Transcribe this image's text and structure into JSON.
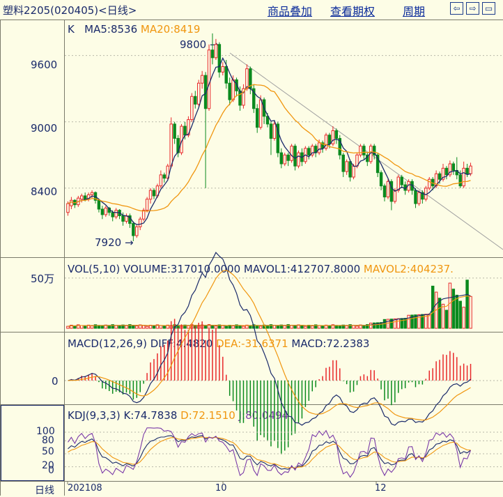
{
  "header": {
    "title": "塑料2205(020405)<日线>",
    "links": [
      "商品叠加",
      "查看期权",
      "周期"
    ],
    "nav_icons": [
      "prev-icon",
      "next-icon",
      "expand-icon"
    ]
  },
  "main_panel": {
    "label_k": "K",
    "ma5": "MA5:8536",
    "ma20": "MA20:8419",
    "y_ticks": [
      "9600",
      "9000",
      "8400"
    ],
    "high_label": "9800",
    "low_label": "7920"
  },
  "vol_panel": {
    "label": "VOL(5,10)",
    "volume": "VOLUME:317010.0000",
    "mavol1": "MAVOL1:412707.8000",
    "mavol2": "MAVOL2:404237.",
    "y_tick": "50万"
  },
  "macd_panel": {
    "label": "MACD(12,26,9)",
    "diff": "DIFF:4.4820",
    "dea": "DEA:-31.6371",
    "macd": "MACD:72.2383",
    "y_tick": "0"
  },
  "kdj_panel": {
    "label": "KDJ(9,3,3)",
    "k": "K:74.7838",
    "d": "D:72.1510",
    "j": "J:80.0494",
    "y_ticks": [
      "100",
      "80",
      "50",
      "20",
      "0"
    ]
  },
  "x_axis": {
    "period_label": "日线",
    "ticks": [
      "202108",
      "10",
      "12"
    ]
  },
  "colors": {
    "up": "#e8282a",
    "down": "#0a8a1e",
    "ma5": "#1a2a6a",
    "ma20": "#f0960f",
    "grid": "#b8b8a8"
  },
  "chart_data": {
    "type": "candlestick",
    "y_range": [
      7800,
      9850
    ],
    "candles": [
      [
        8180,
        8260,
        8150,
        8280
      ],
      [
        8240,
        8290,
        8210,
        8320
      ],
      [
        8290,
        8250,
        8220,
        8300
      ],
      [
        8250,
        8310,
        8230,
        8330
      ],
      [
        8300,
        8330,
        8270,
        8350
      ],
      [
        8330,
        8300,
        8280,
        8360
      ],
      [
        8300,
        8340,
        8280,
        8360
      ],
      [
        8340,
        8360,
        8310,
        8380
      ],
      [
        8360,
        8290,
        8260,
        8370
      ],
      [
        8290,
        8210,
        8180,
        8300
      ],
      [
        8210,
        8160,
        8120,
        8240
      ],
      [
        8160,
        8220,
        8140,
        8240
      ],
      [
        8220,
        8180,
        8150,
        8230
      ],
      [
        8180,
        8140,
        8100,
        8200
      ],
      [
        8140,
        8200,
        8120,
        8220
      ],
      [
        8200,
        8150,
        8120,
        8210
      ],
      [
        8150,
        8100,
        8060,
        8180
      ],
      [
        8100,
        8150,
        8080,
        8170
      ],
      [
        8150,
        8080,
        8040,
        8170
      ],
      [
        8080,
        7970,
        7920,
        8100
      ],
      [
        7970,
        8050,
        7950,
        8070
      ],
      [
        8050,
        8120,
        8020,
        8140
      ],
      [
        8120,
        8200,
        8100,
        8220
      ],
      [
        8200,
        8300,
        8180,
        8320
      ],
      [
        8300,
        8380,
        8260,
        8400
      ],
      [
        8380,
        8330,
        8300,
        8400
      ],
      [
        8330,
        8420,
        8310,
        8440
      ],
      [
        8420,
        8520,
        8400,
        8560
      ],
      [
        8520,
        8490,
        8450,
        8540
      ],
      [
        8490,
        8600,
        8470,
        8620
      ],
      [
        8600,
        8980,
        8580,
        9040
      ],
      [
        8980,
        8850,
        8800,
        9000
      ],
      [
        8850,
        8720,
        8680,
        8880
      ],
      [
        8720,
        8960,
        8700,
        8980
      ],
      [
        8960,
        8880,
        8840,
        9000
      ],
      [
        8880,
        9020,
        8860,
        9050
      ],
      [
        9020,
        9230,
        9000,
        9260
      ],
      [
        9230,
        9160,
        9120,
        9280
      ],
      [
        9160,
        9350,
        9140,
        9380
      ],
      [
        9350,
        9420,
        9300,
        9460
      ],
      [
        9420,
        9120,
        8400,
        9450
      ],
      [
        9120,
        9650,
        9100,
        9700
      ],
      [
        9650,
        9580,
        9520,
        9800
      ],
      [
        9580,
        9700,
        9560,
        9750
      ],
      [
        9700,
        9450,
        9400,
        9720
      ],
      [
        9450,
        9500,
        9420,
        9540
      ],
      [
        9500,
        9350,
        9300,
        9560
      ],
      [
        9350,
        9200,
        9150,
        9400
      ],
      [
        9200,
        9380,
        9180,
        9420
      ],
      [
        9380,
        9280,
        9230,
        9400
      ],
      [
        9280,
        9150,
        9100,
        9320
      ],
      [
        9150,
        9300,
        9120,
        9340
      ],
      [
        9300,
        9480,
        9280,
        9520
      ],
      [
        9480,
        9300,
        9250,
        9500
      ],
      [
        9300,
        9120,
        9080,
        9340
      ],
      [
        9120,
        8950,
        8900,
        9160
      ],
      [
        8950,
        9200,
        8930,
        9240
      ],
      [
        9200,
        9050,
        8980,
        9220
      ],
      [
        9050,
        8980,
        8950,
        9080
      ],
      [
        8980,
        8850,
        8700,
        9000
      ],
      [
        8850,
        8980,
        8830,
        9010
      ],
      [
        8980,
        8720,
        8680,
        9000
      ],
      [
        8720,
        8620,
        8580,
        8760
      ],
      [
        8620,
        8700,
        8600,
        8720
      ],
      [
        8700,
        8650,
        8600,
        8720
      ],
      [
        8650,
        8780,
        8630,
        8800
      ],
      [
        8780,
        8600,
        8560,
        8800
      ],
      [
        8600,
        8720,
        8580,
        8740
      ],
      [
        8720,
        8640,
        8600,
        8760
      ],
      [
        8640,
        8760,
        8620,
        8780
      ],
      [
        8760,
        8700,
        8660,
        8780
      ],
      [
        8700,
        8780,
        8680,
        8800
      ],
      [
        8780,
        8720,
        8680,
        8800
      ],
      [
        8720,
        8810,
        8700,
        8840
      ],
      [
        8810,
        8760,
        8720,
        8830
      ],
      [
        8760,
        8880,
        8740,
        8900
      ],
      [
        8880,
        8800,
        8760,
        8900
      ],
      [
        8800,
        8920,
        8780,
        8960
      ],
      [
        8920,
        8850,
        8800,
        8940
      ],
      [
        8850,
        8700,
        8660,
        8880
      ],
      [
        8700,
        8550,
        8500,
        8720
      ],
      [
        8550,
        8640,
        8520,
        8660
      ],
      [
        8640,
        8500,
        8460,
        8660
      ],
      [
        8500,
        8600,
        8480,
        8620
      ],
      [
        8600,
        8700,
        8580,
        8720
      ],
      [
        8700,
        8780,
        8680,
        8800
      ],
      [
        8780,
        8700,
        8660,
        8800
      ],
      [
        8700,
        8640,
        8600,
        8720
      ],
      [
        8640,
        8780,
        8620,
        8800
      ],
      [
        8780,
        8700,
        8660,
        8800
      ],
      [
        8700,
        8540,
        8500,
        8720
      ],
      [
        8540,
        8420,
        8380,
        8560
      ],
      [
        8420,
        8320,
        8280,
        8440
      ],
      [
        8320,
        8460,
        8300,
        8480
      ],
      [
        8460,
        8280,
        8200,
        8480
      ],
      [
        8280,
        8380,
        8260,
        8400
      ],
      [
        8380,
        8500,
        8360,
        8520
      ],
      [
        8500,
        8430,
        8400,
        8520
      ],
      [
        8430,
        8380,
        8340,
        8460
      ],
      [
        8380,
        8460,
        8360,
        8480
      ],
      [
        8460,
        8380,
        8340,
        8480
      ],
      [
        8380,
        8260,
        8220,
        8400
      ],
      [
        8260,
        8360,
        8240,
        8380
      ],
      [
        8360,
        8300,
        8260,
        8380
      ],
      [
        8300,
        8400,
        8280,
        8420
      ],
      [
        8400,
        8480,
        8380,
        8500
      ],
      [
        8480,
        8420,
        8380,
        8500
      ],
      [
        8420,
        8530,
        8400,
        8560
      ],
      [
        8530,
        8480,
        8440,
        8550
      ],
      [
        8480,
        8580,
        8460,
        8620
      ],
      [
        8580,
        8520,
        8480,
        8600
      ],
      [
        8520,
        8620,
        8500,
        8650
      ],
      [
        8620,
        8560,
        8520,
        8640
      ],
      [
        8560,
        8520,
        8480,
        8680
      ],
      [
        8520,
        8420,
        8400,
        8560
      ],
      [
        8420,
        8580,
        8400,
        8640
      ],
      [
        8580,
        8530,
        8500,
        8620
      ],
      [
        8530,
        8600,
        8510,
        8630
      ]
    ],
    "kdj_y_range": [
      0,
      100
    ],
    "macd_range": [
      -120,
      220
    ],
    "vol_range": [
      0,
      520000
    ]
  }
}
